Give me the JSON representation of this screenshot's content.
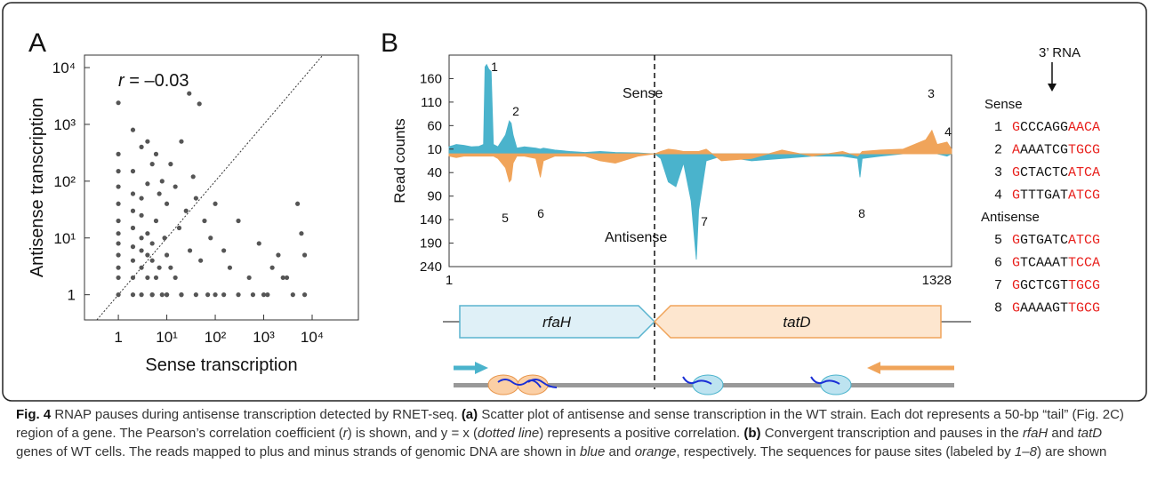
{
  "panel_labels": [
    "A",
    "B"
  ],
  "chart_data": [
    {
      "type": "scatter",
      "xlabel": "Sense transcription",
      "ylabel": "Antisense transcription",
      "annotation": [
        "r",
        " = –0.03"
      ],
      "xscale": "log",
      "yscale": "log",
      "diagonal": true,
      "color": "#555555",
      "xlim": [
        0.2,
        90000
      ],
      "ylim": [
        0.36,
        16600
      ],
      "xticks": [
        1,
        {
          "value": 10,
          "label": "10¹"
        },
        {
          "value": 100,
          "label": "10²"
        },
        {
          "value": 1000,
          "label": "10³"
        },
        {
          "value": 10000,
          "label": "10⁴"
        }
      ],
      "yticks": [
        1,
        {
          "value": 10,
          "label": "10¹"
        },
        {
          "value": 100,
          "label": "10²"
        },
        {
          "value": 1000,
          "label": "10³"
        },
        {
          "value": 10000,
          "label": "10⁴"
        }
      ],
      "x": [
        1,
        1,
        1,
        1,
        1,
        1,
        1,
        1,
        1,
        1,
        1,
        1,
        2,
        2,
        2,
        2,
        2,
        2,
        2,
        2,
        2,
        3,
        3,
        3,
        3,
        3,
        3,
        3,
        4,
        4,
        4,
        4,
        4,
        5,
        5,
        5,
        5,
        6,
        6,
        6,
        7,
        7,
        8,
        8,
        9,
        10,
        10,
        10,
        12,
        12,
        15,
        15,
        18,
        20,
        20,
        25,
        29,
        30,
        35,
        40,
        47,
        50,
        60,
        80,
        100,
        100,
        150,
        200,
        300,
        500,
        800,
        1000,
        1500,
        2000,
        3000,
        5000,
        6000,
        7000,
        7000,
        4000,
        2500,
        1200,
        600,
        300,
        150,
        70,
        40,
        20,
        10,
        5
      ],
      "y": [
        1,
        2,
        3,
        5,
        8,
        12,
        20,
        40,
        80,
        150,
        300,
        2400,
        1,
        2,
        4,
        7,
        15,
        30,
        60,
        150,
        800,
        1,
        3,
        6,
        10,
        25,
        50,
        400,
        2,
        5,
        12,
        90,
        500,
        1,
        4,
        8,
        200,
        2,
        20,
        300,
        3,
        60,
        1,
        100,
        10,
        1,
        5,
        40,
        3,
        200,
        2,
        80,
        15,
        1,
        500,
        30,
        3500,
        6,
        120,
        50,
        2300,
        4,
        20,
        10,
        1,
        40,
        6,
        3,
        20,
        2,
        8,
        1,
        3,
        5,
        2,
        40,
        12,
        5,
        1,
        1,
        2,
        1,
        1,
        1,
        1,
        1,
        1,
        1,
        1,
        1
      ]
    },
    {
      "type": "area",
      "ylabel": "Read counts",
      "annotations": [
        "Sense",
        "Antisense"
      ],
      "peak_labels": [
        "1",
        "2",
        "3",
        "4",
        "5",
        "6",
        "7",
        "8"
      ],
      "xlim": [
        1,
        1328
      ],
      "xticks": [
        1,
        1328
      ],
      "ylim": [
        -240,
        210
      ],
      "yticks": [
        160,
        110,
        60,
        10,
        {
          "value": -40,
          "label": "40"
        },
        {
          "value": -90,
          "label": "90"
        },
        {
          "value": -140,
          "label": "140"
        },
        {
          "value": -190,
          "label": "190"
        },
        {
          "value": -240,
          "label": "240"
        }
      ],
      "x": [
        1,
        20,
        40,
        60,
        80,
        92,
        96,
        100,
        106,
        112,
        118,
        130,
        150,
        160,
        165,
        170,
        180,
        200,
        230,
        242,
        250,
        280,
        320,
        360,
        400,
        440,
        500,
        544,
        560,
        580,
        600,
        620,
        640,
        654,
        660,
        680,
        720,
        800,
        880,
        960,
        1040,
        1080,
        1086,
        1092,
        1140,
        1200,
        1260,
        1276,
        1290,
        1316,
        1328
      ],
      "series": [
        {
          "color": "#4ab3cc",
          "values": [
            15,
            20,
            18,
            15,
            16,
            20,
            185,
            190,
            180,
            175,
            20,
            15,
            40,
            70,
            65,
            40,
            12,
            15,
            12,
            10,
            12,
            8,
            5,
            3,
            5,
            3,
            2,
            0,
            -10,
            -60,
            -70,
            -20,
            -100,
            -225,
            -120,
            -15,
            -5,
            -15,
            -10,
            -5,
            -5,
            -10,
            -50,
            -10,
            -5,
            0,
            0,
            0,
            0,
            -5,
            0
          ]
        },
        {
          "color": "#f0a45a",
          "values": [
            -5,
            -8,
            -5,
            -5,
            -5,
            -5,
            -5,
            -5,
            -5,
            -5,
            -5,
            -10,
            -30,
            -60,
            -55,
            -20,
            -5,
            -5,
            -10,
            -50,
            -15,
            -5,
            -5,
            -5,
            -15,
            -20,
            -5,
            0,
            5,
            10,
            8,
            5,
            5,
            5,
            5,
            10,
            -15,
            -10,
            8,
            -5,
            5,
            -5,
            0,
            5,
            8,
            10,
            30,
            50,
            20,
            25,
            10
          ]
        }
      ]
    }
  ],
  "sequences": {
    "pointer": "3’ RNA",
    "groups": [
      {
        "title": "Sense",
        "rows": [
          [
            "1",
            "G",
            "CCCAGG",
            "AACA"
          ],
          [
            "2",
            "A",
            "AAATCG",
            "TGCG"
          ],
          [
            "3",
            "G",
            "CTACTC",
            "ATCA"
          ],
          [
            "4",
            "G",
            "TTTGAT",
            "ATCG"
          ]
        ]
      },
      {
        "title": "Antisense",
        "rows": [
          [
            "5",
            "G",
            "GTGATC",
            "ATCG"
          ],
          [
            "6",
            "G",
            "TCAAAT",
            "TCCA"
          ],
          [
            "7",
            "G",
            "GCTCGT",
            "TGCG"
          ],
          [
            "8",
            "G",
            "AAAAGT",
            "TGCG"
          ]
        ]
      }
    ]
  },
  "genes": [
    "rfaH",
    "tatD"
  ],
  "caption": [
    "Fig. 4",
    " RNAP pauses during antisense transcription detected by RNET-seq. ",
    "(a)",
    " Scatter plot of antisense and sense transcription in the WT strain. Each dot represents a 50-bp “tail” (Fig. 2C) region of a gene. The Pearson’s correlation coefficient (",
    "r",
    ") is shown, and y = x (",
    "dotted line",
    ") represents a positive correlation. ",
    "(b)",
    " Convergent transcription and pauses in the ",
    "rfaH",
    " and ",
    "tatD",
    " genes of WT cells. The reads mapped to plus and minus strands of genomic DNA are shown in ",
    "blue",
    " and ",
    "orange",
    ", respectively. The sequences for pause sites (labeled by ",
    "1–8",
    ") are shown"
  ]
}
